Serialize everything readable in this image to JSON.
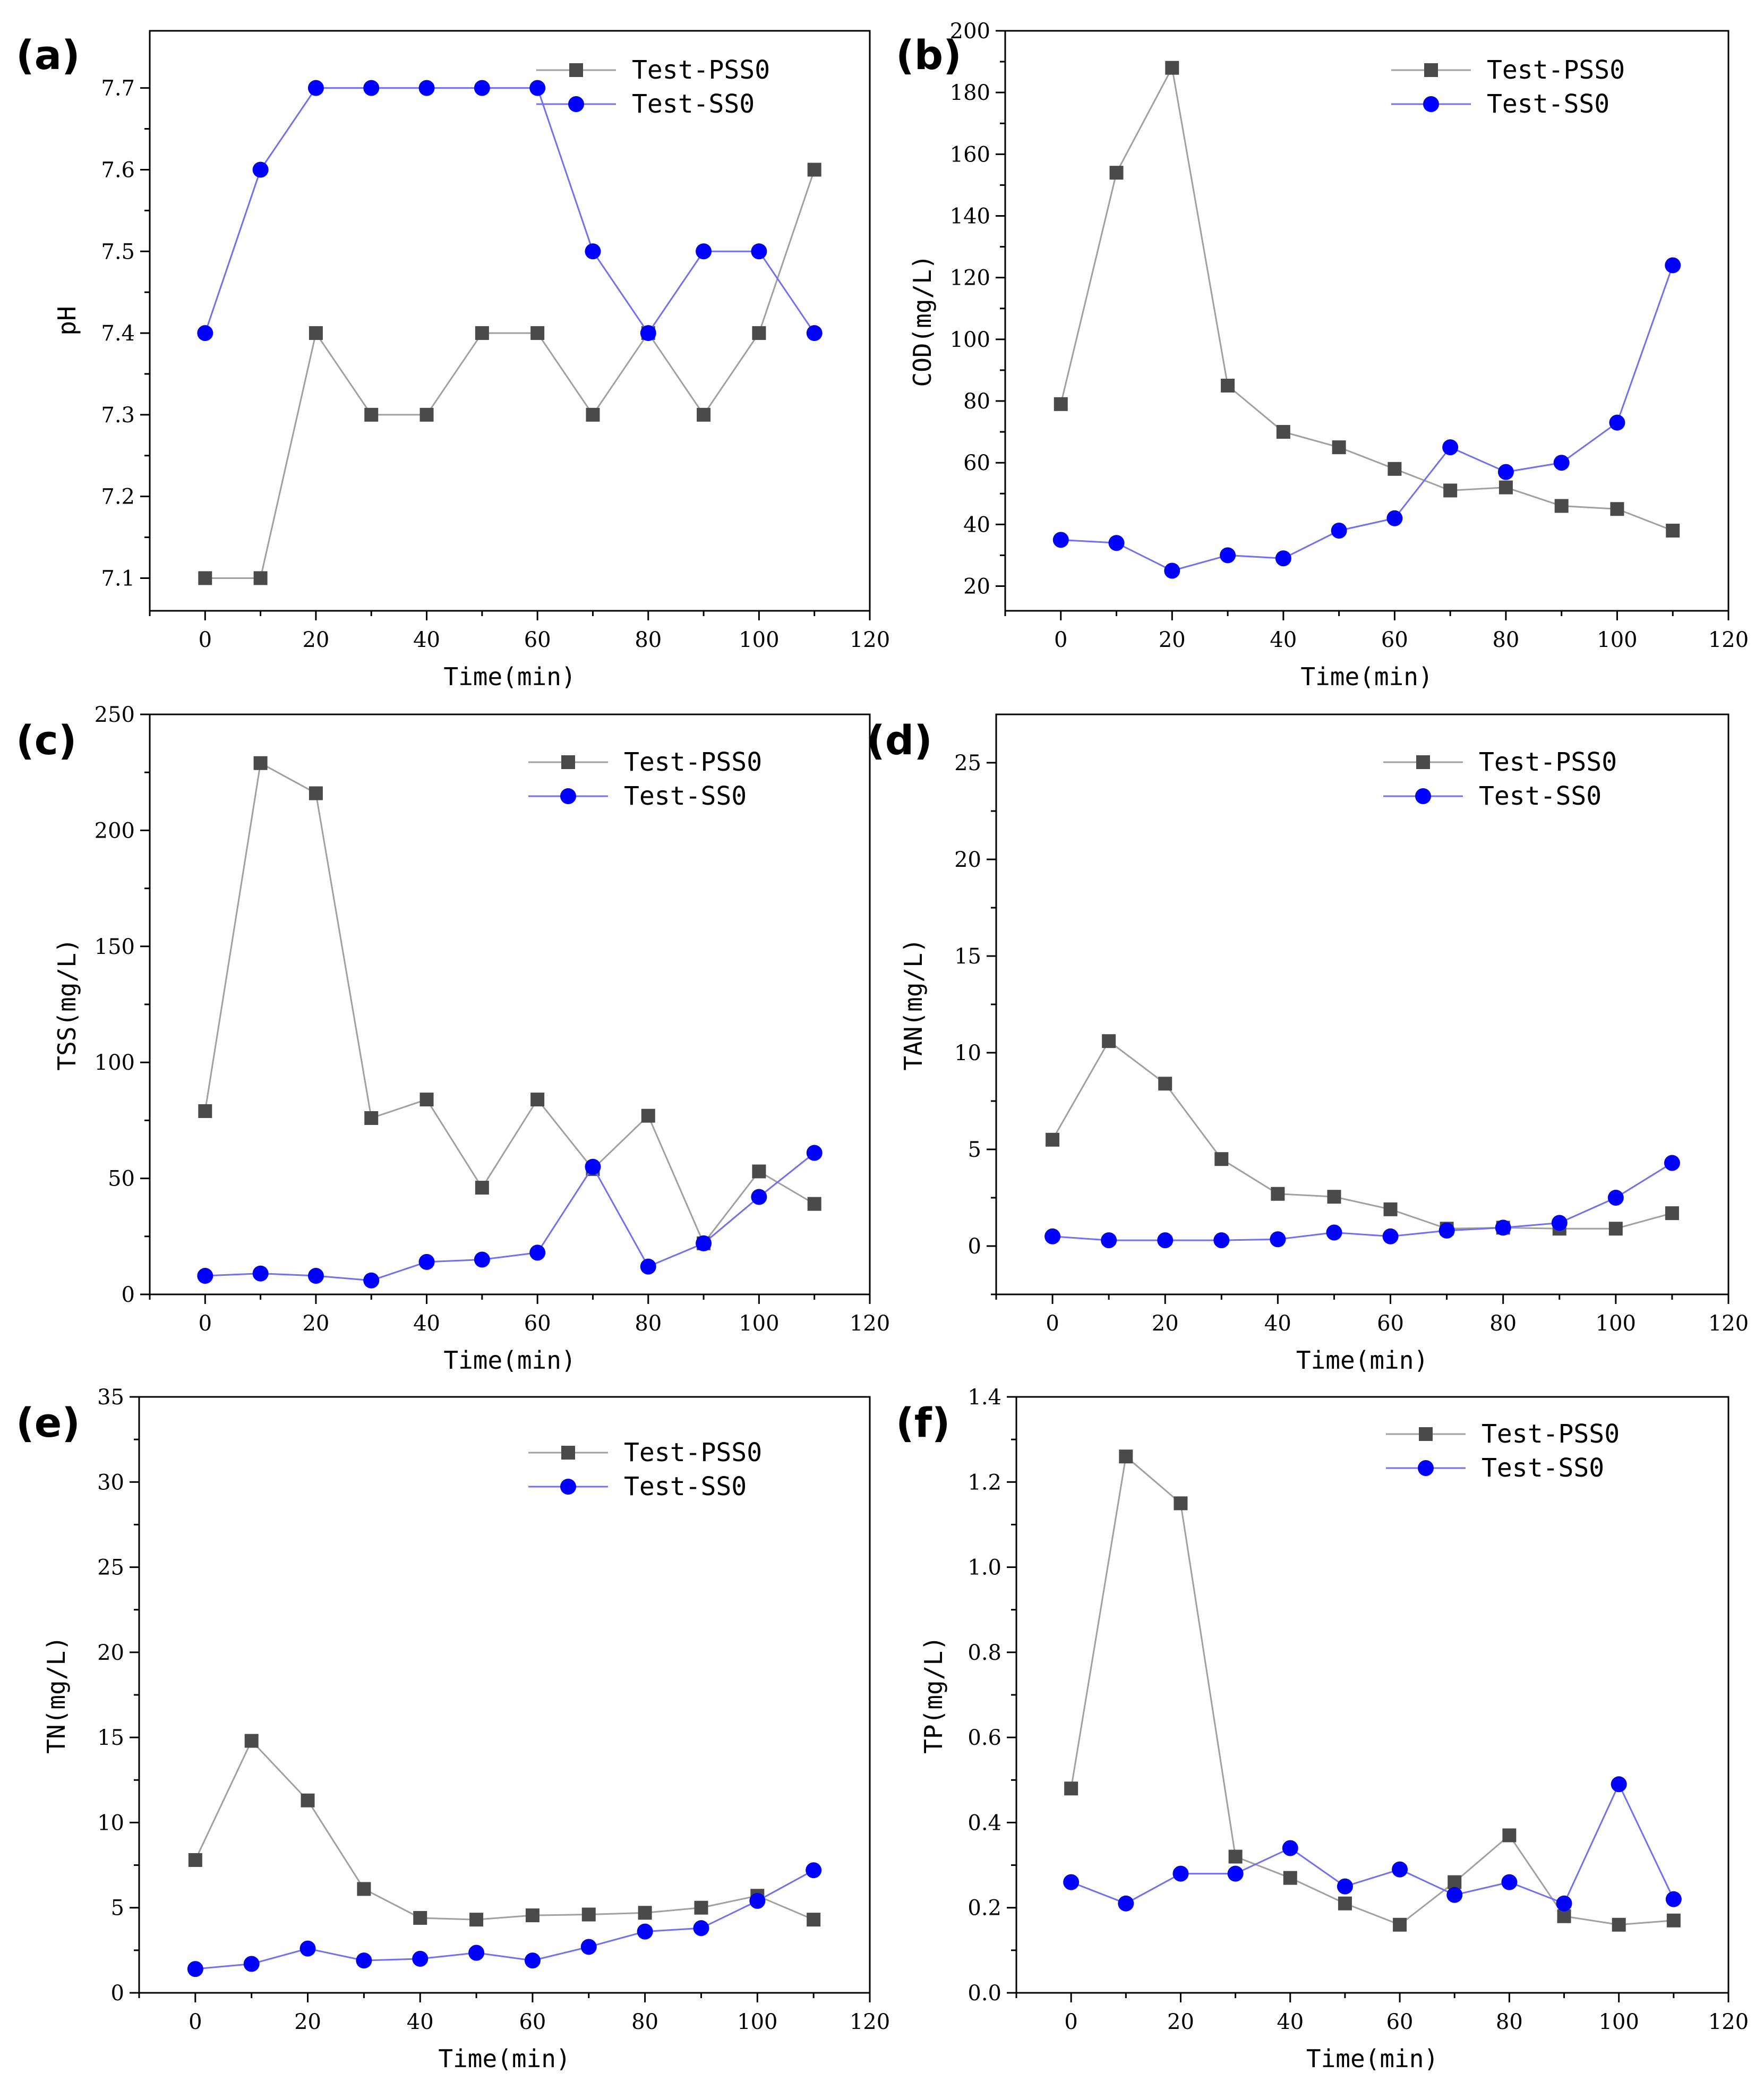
{
  "colors": {
    "pss0": "#4a4a4a",
    "pss0_line": "#a0a0a0",
    "ss0": "#0000ff",
    "ss0_line": "#7070f0"
  },
  "chart_data": [
    {
      "panel": "(a)",
      "type": "line",
      "xlabel": "Time(min)",
      "ylabel": "pH",
      "xlim": [
        -10,
        120
      ],
      "ylim": [
        7.06,
        7.77
      ],
      "xticks": [
        0,
        20,
        40,
        60,
        80,
        100,
        120
      ],
      "yticks": [
        7.1,
        7.2,
        7.3,
        7.4,
        7.5,
        7.6,
        7.7
      ],
      "ydecimals": 1,
      "x": [
        0,
        10,
        20,
        30,
        40,
        50,
        60,
        70,
        80,
        90,
        100,
        110
      ],
      "series": [
        {
          "name": "Test-PSS0",
          "marker": "square",
          "values": [
            7.1,
            7.1,
            7.4,
            7.3,
            7.3,
            7.4,
            7.4,
            7.3,
            7.4,
            7.3,
            7.4,
            7.6
          ]
        },
        {
          "name": "Test-SS0",
          "marker": "circle",
          "values": [
            7.4,
            7.6,
            7.7,
            7.7,
            7.7,
            7.7,
            7.7,
            7.5,
            7.4,
            7.5,
            7.5,
            7.4
          ]
        }
      ],
      "legend": "top-right"
    },
    {
      "panel": "(b)",
      "type": "line",
      "xlabel": "Time(min)",
      "ylabel": "COD(mg/L)",
      "xlim": [
        -10,
        120
      ],
      "ylim": [
        12,
        200
      ],
      "xticks": [
        0,
        20,
        40,
        60,
        80,
        100,
        120
      ],
      "yticks": [
        20,
        40,
        60,
        80,
        100,
        120,
        140,
        160,
        180,
        200
      ],
      "ydecimals": 0,
      "x": [
        0,
        10,
        20,
        30,
        40,
        50,
        60,
        70,
        80,
        90,
        100,
        110
      ],
      "series": [
        {
          "name": "Test-PSS0",
          "marker": "square",
          "values": [
            79,
            154,
            188,
            85,
            70,
            65,
            58,
            51,
            52,
            46,
            45,
            38
          ]
        },
        {
          "name": "Test-SS0",
          "marker": "circle",
          "values": [
            35,
            34,
            25,
            30,
            29,
            38,
            42,
            65,
            57,
            60,
            73,
            124
          ]
        }
      ],
      "legend": "top-right"
    },
    {
      "panel": "(c)",
      "type": "line",
      "xlabel": "Time(min)",
      "ylabel": "TSS(mg/L)",
      "xlim": [
        -10,
        120
      ],
      "ylim": [
        0,
        250
      ],
      "xticks": [
        0,
        20,
        40,
        60,
        80,
        100,
        120
      ],
      "yticks": [
        0,
        50,
        100,
        150,
        200,
        250
      ],
      "ydecimals": 0,
      "x": [
        0,
        10,
        20,
        30,
        40,
        50,
        60,
        70,
        80,
        90,
        100,
        110
      ],
      "series": [
        {
          "name": "Test-PSS0",
          "marker": "square",
          "values": [
            79,
            229,
            216,
            76,
            84,
            46,
            84,
            54,
            77,
            22,
            53,
            39
          ]
        },
        {
          "name": "Test-SS0",
          "marker": "circle",
          "values": [
            8,
            9,
            8,
            6,
            14,
            15,
            18,
            55,
            12,
            22,
            42,
            61
          ]
        }
      ],
      "legend": "top-right"
    },
    {
      "panel": "(d)",
      "type": "line",
      "xlabel": "Time(min)",
      "ylabel": "TAN(mg/L)",
      "xlim": [
        -10,
        120
      ],
      "ylim": [
        -2.5,
        27.5
      ],
      "xticks": [
        0,
        20,
        40,
        60,
        80,
        100,
        120
      ],
      "yticks": [
        0,
        5,
        10,
        15,
        20,
        25
      ],
      "ydecimals": 0,
      "x": [
        0,
        10,
        20,
        30,
        40,
        50,
        60,
        70,
        80,
        90,
        100,
        110
      ],
      "series": [
        {
          "name": "Test-PSS0",
          "marker": "square",
          "values": [
            5.5,
            10.6,
            8.4,
            4.5,
            2.7,
            2.55,
            1.9,
            0.9,
            0.95,
            0.9,
            0.9,
            1.7
          ]
        },
        {
          "name": "Test-SS0",
          "marker": "circle",
          "values": [
            0.5,
            0.3,
            0.3,
            0.3,
            0.35,
            0.7,
            0.5,
            0.8,
            0.95,
            1.2,
            2.5,
            4.3
          ]
        }
      ],
      "legend": "top-right"
    },
    {
      "panel": "(e)",
      "type": "line",
      "xlabel": "Time(min)",
      "ylabel": "TN(mg/L)",
      "xlim": [
        -10,
        120
      ],
      "ylim": [
        0,
        35
      ],
      "xticks": [
        0,
        20,
        40,
        60,
        80,
        100,
        120
      ],
      "yticks": [
        0,
        5,
        10,
        15,
        20,
        25,
        30,
        35
      ],
      "ydecimals": 0,
      "x": [
        0,
        10,
        20,
        30,
        40,
        50,
        60,
        70,
        80,
        90,
        100,
        110
      ],
      "series": [
        {
          "name": "Test-PSS0",
          "marker": "square",
          "values": [
            7.8,
            14.8,
            11.3,
            6.1,
            4.4,
            4.3,
            4.55,
            4.6,
            4.7,
            5.0,
            5.7,
            4.3
          ]
        },
        {
          "name": "Test-SS0",
          "marker": "circle",
          "values": [
            1.4,
            1.7,
            2.6,
            1.9,
            2.0,
            2.35,
            1.9,
            2.7,
            3.6,
            3.8,
            5.4,
            7.2
          ]
        }
      ],
      "legend": "top-right"
    },
    {
      "panel": "(f)",
      "type": "line",
      "xlabel": "Time(min)",
      "ylabel": "TP(mg/L)",
      "xlim": [
        -10,
        120
      ],
      "ylim": [
        0,
        1.4
      ],
      "xticks": [
        0,
        20,
        40,
        60,
        80,
        100,
        120
      ],
      "yticks": [
        0.0,
        0.2,
        0.4,
        0.6,
        0.8,
        1.0,
        1.2,
        1.4
      ],
      "ydecimals": 1,
      "x": [
        0,
        10,
        20,
        30,
        40,
        50,
        60,
        70,
        80,
        90,
        100,
        110
      ],
      "series": [
        {
          "name": "Test-PSS0",
          "marker": "square",
          "values": [
            0.48,
            1.26,
            1.15,
            0.32,
            0.27,
            0.21,
            0.16,
            0.26,
            0.37,
            0.18,
            0.16,
            0.17
          ]
        },
        {
          "name": "Test-SS0",
          "marker": "circle",
          "values": [
            0.26,
            0.21,
            0.28,
            0.28,
            0.34,
            0.25,
            0.29,
            0.23,
            0.26,
            0.21,
            0.49,
            0.22
          ]
        }
      ],
      "legend": "top-right"
    }
  ]
}
